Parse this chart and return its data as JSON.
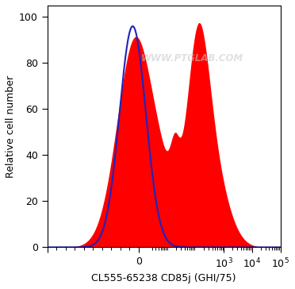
{
  "xlabel": "CL555-65238 CD85j (GHI/75)",
  "ylabel": "Relative cell number",
  "ylim": [
    0,
    105
  ],
  "yticks": [
    0,
    20,
    40,
    60,
    80,
    100
  ],
  "blue_color": "#2222bb",
  "red_color": "#ff0000",
  "red_fill_alpha": 1.0,
  "blue_lw": 1.5,
  "watermark": "WWW.PTGLAB.COM",
  "watermark_color": "#c8c8c8",
  "watermark_alpha": 0.55,
  "background_color": "#ffffff"
}
